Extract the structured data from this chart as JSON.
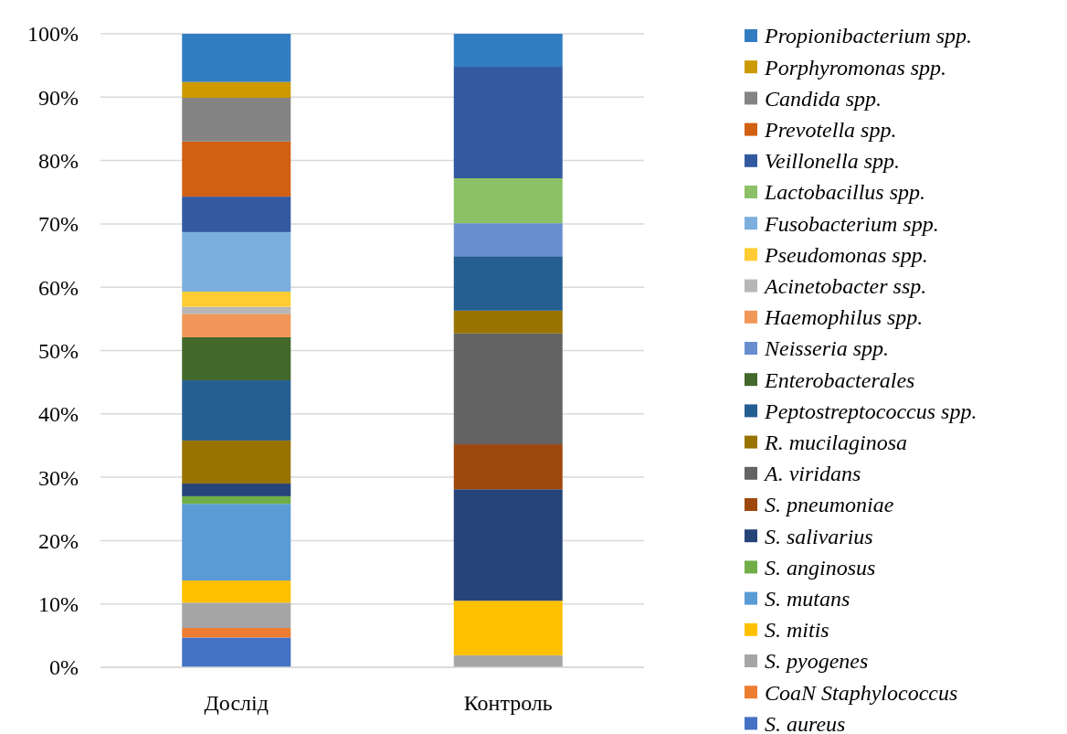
{
  "chart_data": {
    "type": "bar",
    "stacked": true,
    "categories": [
      "Дослід",
      "Контроль"
    ],
    "ylim": [
      0,
      100
    ],
    "yticks": [
      {
        "value": 0,
        "label": "0%"
      },
      {
        "value": 10,
        "label": "10%"
      },
      {
        "value": 20,
        "label": "20%"
      },
      {
        "value": 30,
        "label": "30%"
      },
      {
        "value": 40,
        "label": "40%"
      },
      {
        "value": 50,
        "label": "50%"
      },
      {
        "value": 60,
        "label": "60%"
      },
      {
        "value": 70,
        "label": "70%"
      },
      {
        "value": 80,
        "label": "80%"
      },
      {
        "value": 90,
        "label": "90%"
      },
      {
        "value": 100,
        "label": "100%"
      }
    ],
    "grid": "y",
    "legend": "right",
    "series": [
      {
        "name": "S. aureus",
        "color": "#4472c4",
        "values": [
          4.7,
          0
        ]
      },
      {
        "name": "CoaN Staphylococcus",
        "color": "#ed7d31",
        "values": [
          1.5,
          0
        ]
      },
      {
        "name": "S. pyogenes",
        "color": "#a5a5a5",
        "values": [
          4.0,
          1.9
        ]
      },
      {
        "name": "S. mitis",
        "color": "#ffc000",
        "values": [
          3.5,
          8.6
        ]
      },
      {
        "name": "S. mutans",
        "color": "#5b9bd5",
        "values": [
          12.1,
          0
        ]
      },
      {
        "name": "S. anginosus",
        "color": "#70ad47",
        "values": [
          1.2,
          0
        ]
      },
      {
        "name": "S. salivarius",
        "color": "#264478",
        "values": [
          2.0,
          17.6
        ]
      },
      {
        "name": "S. pneumoniae",
        "color": "#9e480e",
        "values": [
          0,
          7.1
        ]
      },
      {
        "name": "A. viridans",
        "color": "#636363",
        "values": [
          0,
          17.5
        ]
      },
      {
        "name": "R. mucilaginosa",
        "color": "#997300",
        "values": [
          6.8,
          3.6
        ]
      },
      {
        "name": "Peptostreptococcus spp.",
        "color": "#255e91",
        "values": [
          9.5,
          8.6
        ]
      },
      {
        "name": "Enterobacterales",
        "color": "#43682b",
        "values": [
          6.8,
          0
        ]
      },
      {
        "name": "Neisseria spp.",
        "color": "#698ed0",
        "values": [
          0,
          5.2
        ]
      },
      {
        "name": "Haemophilus spp.",
        "color": "#f1975a",
        "values": [
          3.7,
          0
        ]
      },
      {
        "name": "Acinetobacter ssp.",
        "color": "#b7b7b7",
        "values": [
          1.1,
          0
        ]
      },
      {
        "name": "Pseudomonas spp.",
        "color": "#ffcd33",
        "values": [
          2.4,
          0
        ]
      },
      {
        "name": "Fusobacterium spp.",
        "color": "#7cafdd",
        "values": [
          9.4,
          0
        ]
      },
      {
        "name": "Lactobacillus spp.",
        "color": "#8cc168",
        "values": [
          0,
          7.1
        ]
      },
      {
        "name": "Veillonella spp.",
        "color": "#335aa1",
        "values": [
          5.6,
          17.6
        ]
      },
      {
        "name": "Prevotella spp.",
        "color": "#d26012",
        "values": [
          8.7,
          0
        ]
      },
      {
        "name": "Candida spp.",
        "color": "#848484",
        "values": [
          6.9,
          0
        ]
      },
      {
        "name": "Porphyromonas spp.",
        "color": "#cc9a00",
        "values": [
          2.5,
          0
        ]
      },
      {
        "name": "Propionibacterium spp.",
        "color": "#327dc2",
        "values": [
          7.6,
          5.2
        ]
      }
    ]
  }
}
